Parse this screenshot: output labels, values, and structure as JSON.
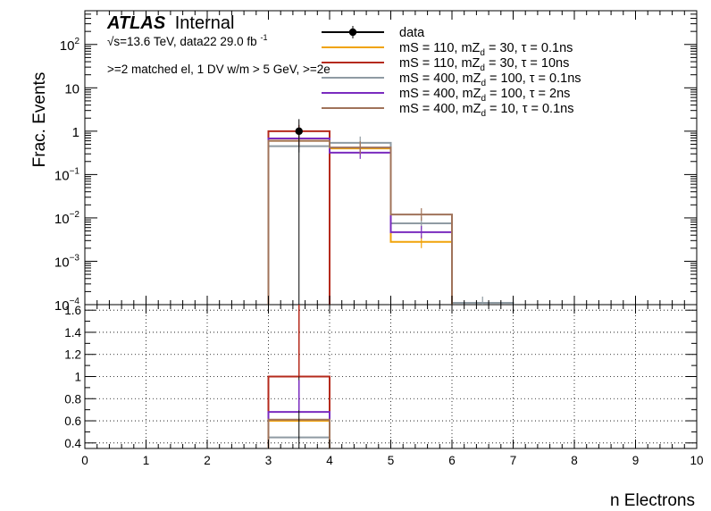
{
  "chart_data": [
    {
      "type": "line",
      "panel": "top",
      "ylabel": "Frac. Events",
      "yscale": "log",
      "xlim": [
        0,
        10
      ],
      "ylim": [
        0.0001,
        600
      ],
      "yticks": [
        {
          "v": 100,
          "base": "10",
          "exp": "2"
        },
        {
          "v": 10,
          "base": "10",
          "exp": ""
        },
        {
          "v": 1,
          "base": "1",
          "exp": ""
        },
        {
          "v": 0.1,
          "base": "10",
          "exp": "−1"
        },
        {
          "v": 0.01,
          "base": "10",
          "exp": "−2"
        },
        {
          "v": 0.001,
          "base": "10",
          "exp": "−3"
        },
        {
          "v": 0.0001,
          "base": "10",
          "exp": "−4"
        }
      ],
      "atlas": "ATLAS",
      "atlas_status": "Internal",
      "energy_label": "√s=13.6 TeV, data22 29.0 fb",
      "energy_sup": "-1",
      "selection": ">=2 matched el, 1 DV w/m > 5 GeV, >=2e",
      "legend_position": "top-right",
      "series": [
        {
          "name": "data",
          "kind": "data",
          "color": "#000000",
          "points": [
            {
              "x": 3.5,
              "y": 1.0,
              "err": 0.9
            }
          ]
        },
        {
          "name": "mS = 110, mZ_d = 30, τ = 0.1ns",
          "label": "mS = 110, mZ",
          "sub": "d",
          "rest": " = 30, τ = 0.1ns",
          "color": "#f0a30a",
          "bins": [
            {
              "lo": 3,
              "hi": 4,
              "y": 0.6
            },
            {
              "lo": 4,
              "hi": 5,
              "y": 0.4
            },
            {
              "lo": 5,
              "hi": 6,
              "y": 0.0028
            }
          ]
        },
        {
          "name": "mS = 110, mZ_d = 30, τ = 10ns",
          "label": "mS = 110, mZ",
          "sub": "d",
          "rest": " = 30, τ = 10ns",
          "color": "#b52a1c",
          "bins": [
            {
              "lo": 3,
              "hi": 4,
              "y": 1.0
            }
          ]
        },
        {
          "name": "mS = 400, mZ_d = 100, τ = 0.1ns",
          "label": "mS = 400, mZ",
          "sub": "d",
          "rest": " = 100, τ = 0.1ns",
          "color": "#8f9ba3",
          "bins": [
            {
              "lo": 3,
              "hi": 4,
              "y": 0.45
            },
            {
              "lo": 4,
              "hi": 5,
              "y": 0.54
            },
            {
              "lo": 5,
              "hi": 6,
              "y": 0.0075
            },
            {
              "lo": 6,
              "hi": 7,
              "y": 0.00011
            }
          ]
        },
        {
          "name": "mS = 400, mZ_d = 100, τ = 2ns",
          "label": "mS = 400, mZ",
          "sub": "d",
          "rest": " = 100, τ = 2ns",
          "color": "#7a2bbf",
          "bins": [
            {
              "lo": 3,
              "hi": 4,
              "y": 0.68
            },
            {
              "lo": 4,
              "hi": 5,
              "y": 0.32
            },
            {
              "lo": 5,
              "hi": 6,
              "y": 0.0047
            }
          ]
        },
        {
          "name": "mS = 400, mZ_d = 10, τ = 0.1ns",
          "label": "mS = 400, mZ",
          "sub": "d",
          "rest": " = 10, τ = 0.1ns",
          "color": "#a0735a",
          "bins": [
            {
              "lo": 3,
              "hi": 4,
              "y": 0.6
            },
            {
              "lo": 4,
              "hi": 5,
              "y": 0.42
            },
            {
              "lo": 5,
              "hi": 6,
              "y": 0.012
            }
          ]
        }
      ]
    },
    {
      "type": "line",
      "panel": "ratio",
      "xlabel": "n Electrons",
      "xlim": [
        0,
        10
      ],
      "ylim": [
        0.35,
        1.65
      ],
      "xticks": [
        "0",
        "1",
        "2",
        "3",
        "4",
        "5",
        "6",
        "7",
        "8",
        "9",
        "10"
      ],
      "yticks": [
        "0.4",
        "0.6",
        "0.8",
        "1",
        "1.2",
        "1.4",
        "1.6"
      ],
      "grid": true,
      "series": [
        {
          "name": "mS = 110, mZ_d = 30, τ = 0.1ns",
          "color": "#f0a30a",
          "bins": [
            {
              "lo": 3,
              "hi": 4,
              "y": 0.6
            }
          ]
        },
        {
          "name": "mS = 110, mZ_d = 30, τ = 10ns",
          "color": "#b52a1c",
          "bins": [
            {
              "lo": 3,
              "hi": 4,
              "y": 1.0
            }
          ]
        },
        {
          "name": "mS = 400, mZ_d = 100, τ = 0.1ns",
          "color": "#8f9ba3",
          "bins": [
            {
              "lo": 3,
              "hi": 4,
              "y": 0.45
            }
          ]
        },
        {
          "name": "mS = 400, mZ_d = 100, τ = 2ns",
          "color": "#7a2bbf",
          "bins": [
            {
              "lo": 3,
              "hi": 4,
              "y": 0.68
            }
          ]
        },
        {
          "name": "mS = 400, mZ_d = 10, τ = 0.1ns",
          "color": "#a0735a",
          "bins": [
            {
              "lo": 3,
              "hi": 4,
              "y": 0.61
            }
          ]
        }
      ]
    }
  ]
}
